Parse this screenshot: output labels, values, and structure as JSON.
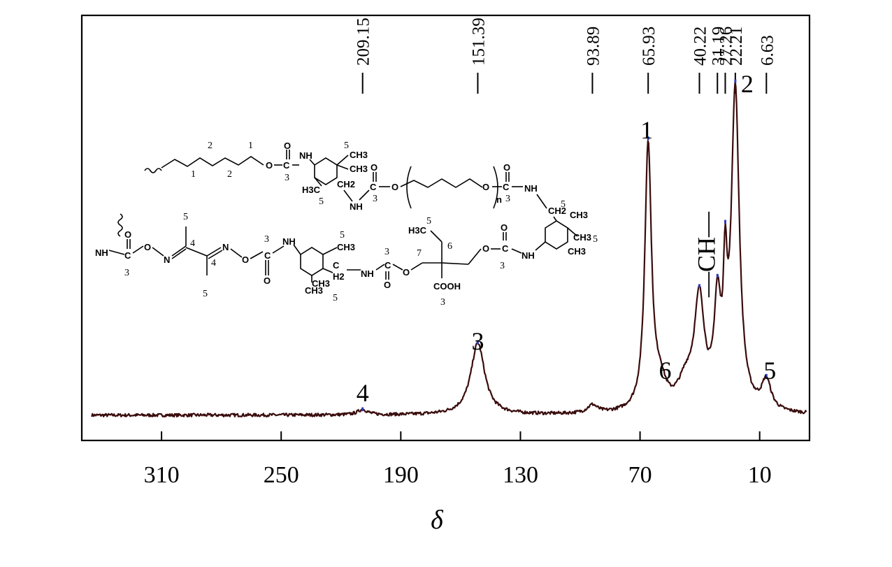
{
  "chart_data": {
    "type": "line",
    "xlabel": "δ",
    "ylabel": "",
    "xlim": [
      350,
      -15
    ],
    "x_reversed": true,
    "grid": false,
    "xticks": [
      310,
      250,
      190,
      130,
      70,
      10
    ],
    "xtick_labels": [
      "310",
      "250",
      "190",
      "130",
      "70",
      "10"
    ],
    "shift_labels": [
      {
        "value": 209.15,
        "text": "209.15"
      },
      {
        "value": 151.39,
        "text": "151.39"
      },
      {
        "value": 93.89,
        "text": "93.89"
      },
      {
        "value": 65.93,
        "text": "65.93"
      },
      {
        "value": 40.22,
        "text": "40.22"
      },
      {
        "value": 31.19,
        "text": "31.19"
      },
      {
        "value": 27.26,
        "text": "27.26"
      },
      {
        "value": 22.21,
        "text": "22.21"
      },
      {
        "value": 6.63,
        "text": "6.63"
      }
    ],
    "peak_labels": [
      {
        "text": "1",
        "x": 65.93
      },
      {
        "text": "2",
        "x": 22.21
      },
      {
        "text": "3",
        "x": 151.39
      },
      {
        "text": "4",
        "x": 209.15
      },
      {
        "text": "5",
        "x": 6.63
      },
      {
        "text": "6",
        "x": 59.5
      },
      {
        "text": "—CH2—",
        "x": 40.22
      }
    ],
    "peaks": [
      {
        "x": 209.15,
        "height": 0.02,
        "width": 3.0
      },
      {
        "x": 151.39,
        "height": 0.27,
        "width": 4.2
      },
      {
        "x": 93.89,
        "height": 0.03,
        "width": 3.0
      },
      {
        "x": 65.93,
        "height": 1.0,
        "width": 2.0
      },
      {
        "x": 60.0,
        "height": 0.09,
        "width": 3.5
      },
      {
        "x": 47.0,
        "height": 0.1,
        "width": 5.0
      },
      {
        "x": 40.22,
        "height": 0.4,
        "width": 3.0
      },
      {
        "x": 31.19,
        "height": 0.36,
        "width": 2.0
      },
      {
        "x": 27.26,
        "height": 0.4,
        "width": 1.1
      },
      {
        "x": 22.21,
        "height": 1.2,
        "width": 2.4
      },
      {
        "x": 6.63,
        "height": 0.11,
        "width": 2.8
      }
    ],
    "baseline_y": 0.0,
    "series_color": "#3a0c0c"
  },
  "structure": {
    "labels": {
      "o": "O",
      "nh": "NH",
      "n": "N",
      "ch3": "CH3",
      "ch2": "CH2",
      "h2": "H2",
      "h3c": "H3C",
      "cooh": "COOH",
      "sub_n": "n"
    },
    "numbers": [
      "1",
      "2",
      "3",
      "4",
      "5",
      "6",
      "7"
    ]
  }
}
